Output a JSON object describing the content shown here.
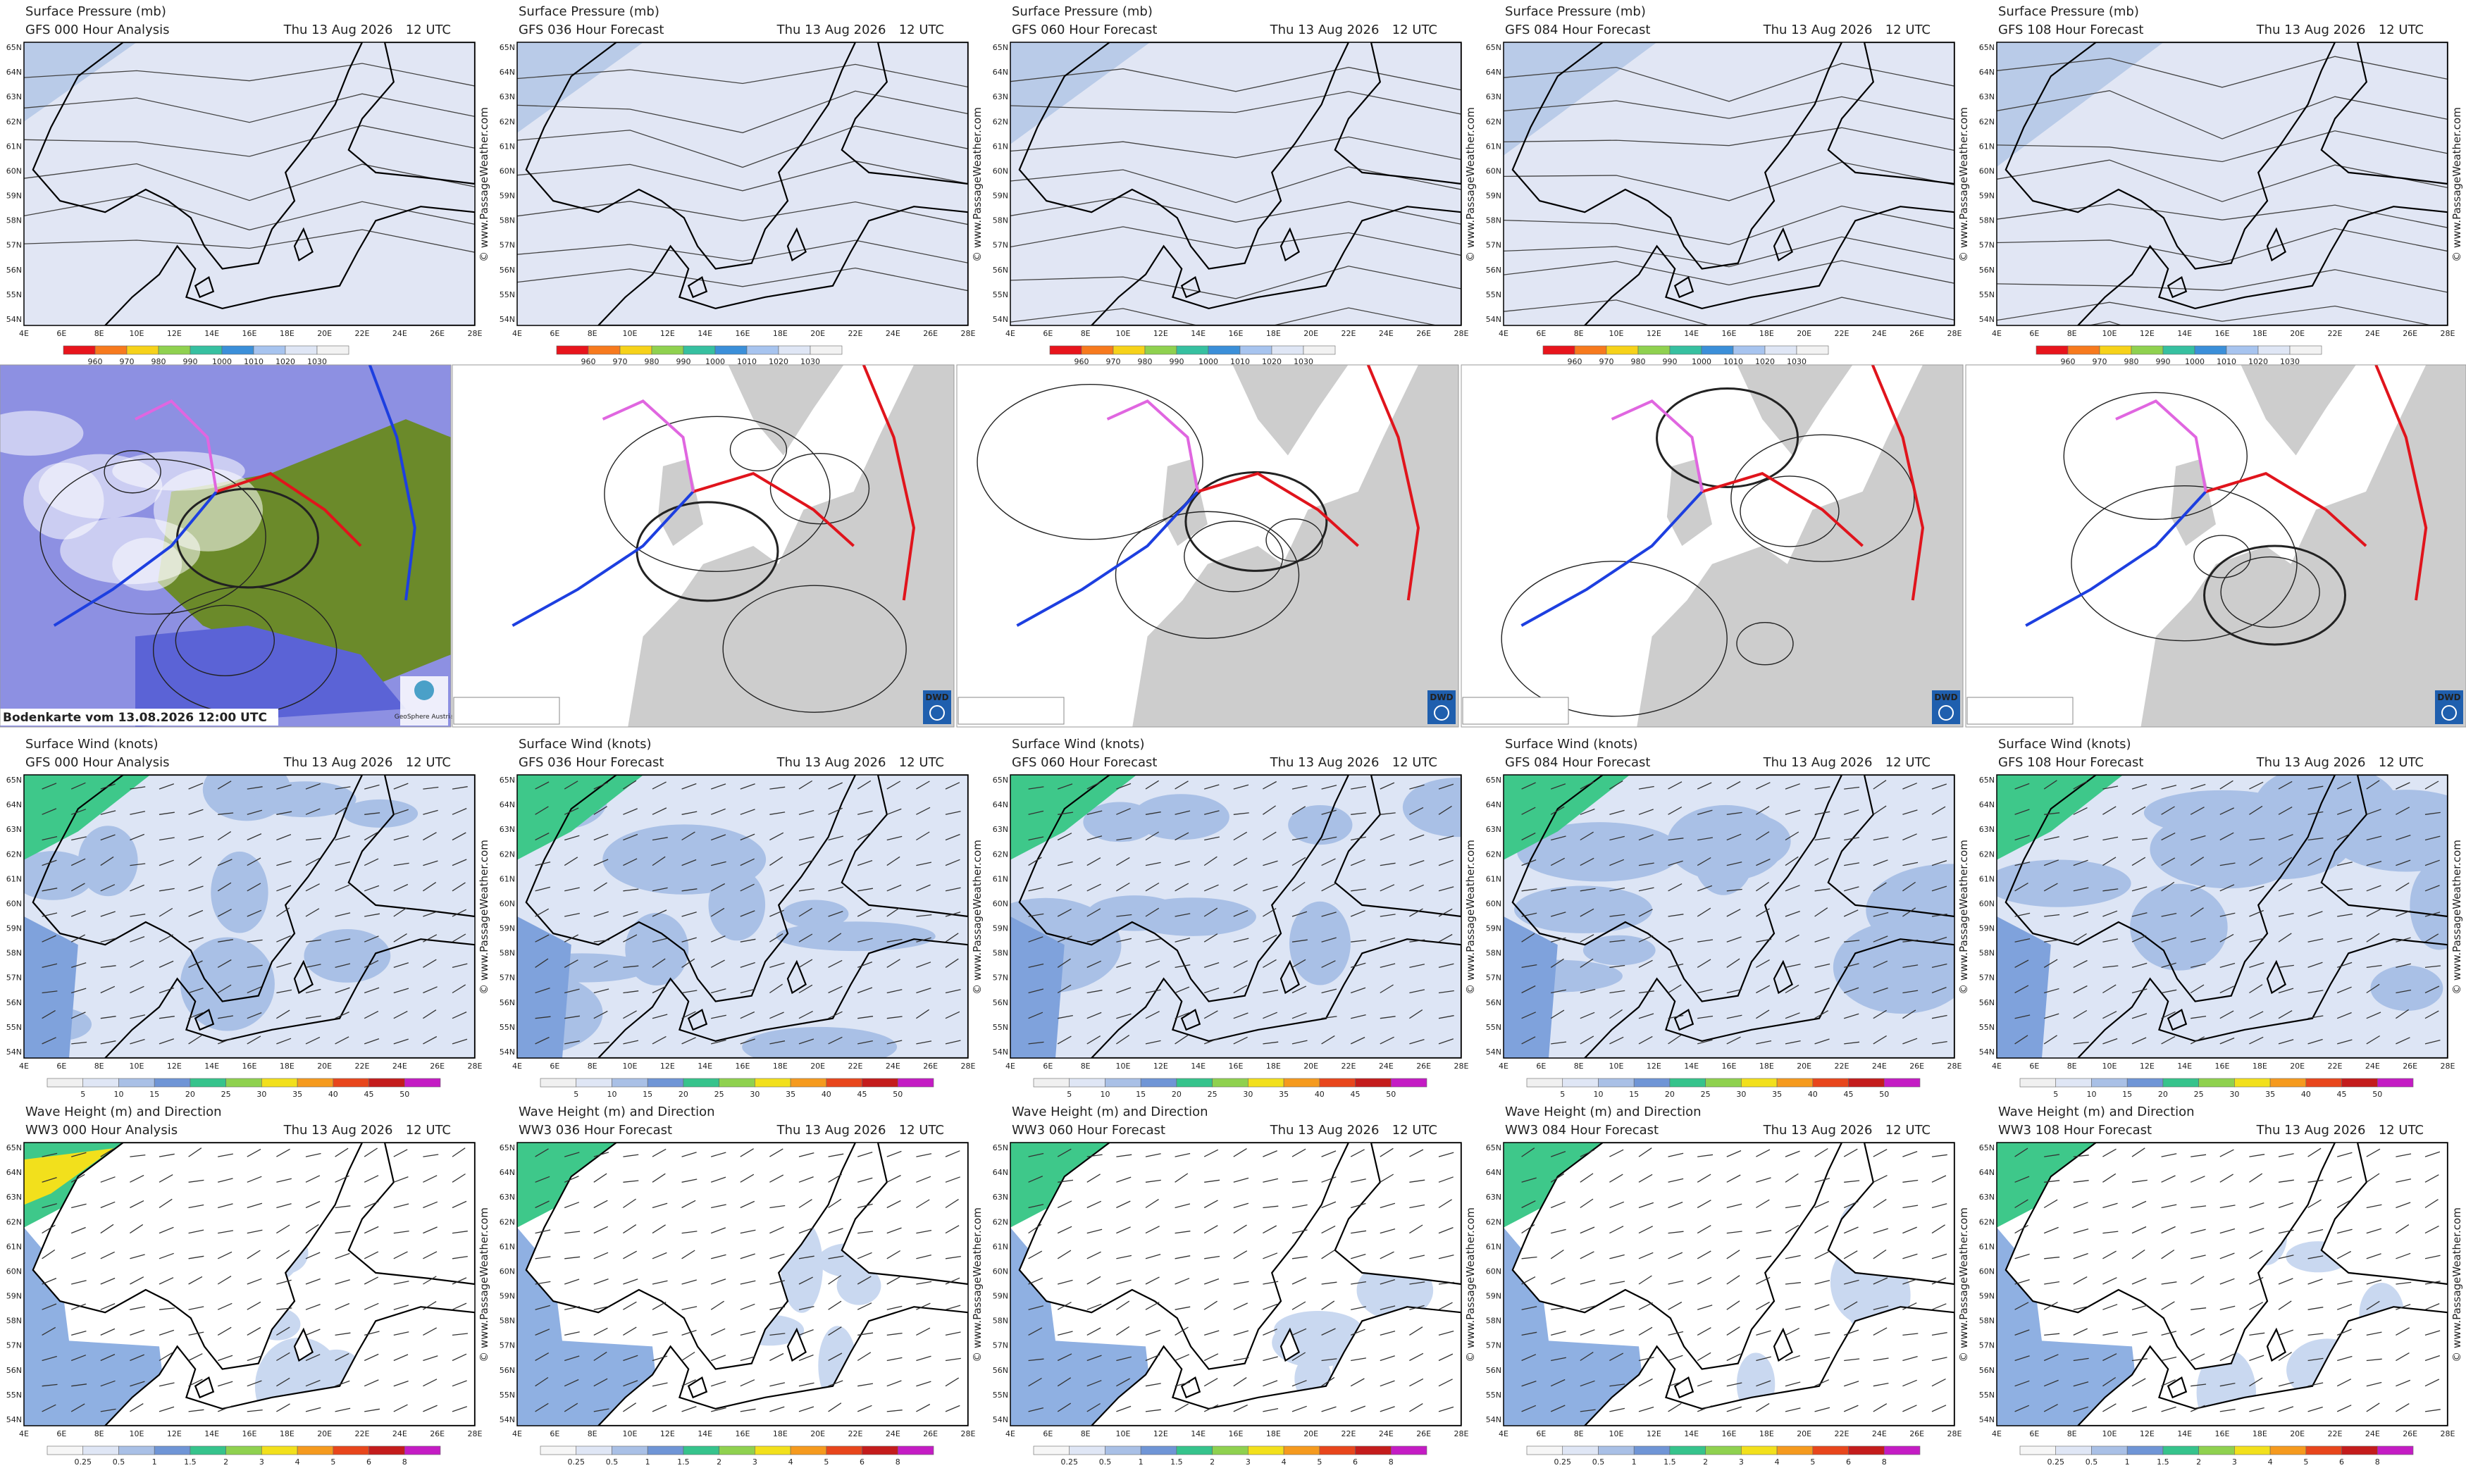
{
  "date": "Thu 13 Aug 2026",
  "time": "12 UTC",
  "watermark": "© www.PassageWeather.com",
  "lat_labels": [
    "65N",
    "64N",
    "63N",
    "62N",
    "61N",
    "60N",
    "59N",
    "58N",
    "57N",
    "56N",
    "55N",
    "54N"
  ],
  "lon_labels": [
    "4E",
    "6E",
    "8E",
    "10E",
    "12E",
    "14E",
    "16E",
    "18E",
    "20E",
    "22E",
    "24E",
    "26E",
    "28E"
  ],
  "pressure_row": {
    "title": "Surface Pressure (mb)",
    "panels": [
      "GFS 000 Hour Analysis",
      "GFS 036 Hour Forecast",
      "GFS 060 Hour Forecast",
      "GFS 084 Hour Forecast",
      "GFS 108 Hour Forecast"
    ],
    "colorbar": {
      "labels": [
        "960",
        "970",
        "980",
        "990",
        "1000",
        "1010",
        "1020",
        "1030"
      ],
      "colors": [
        "#e8141c",
        "#f77a1e",
        "#f6d21a",
        "#8fd14f",
        "#36c0a0",
        "#3b8fd9",
        "#a7c4ef",
        "#dfe6f5",
        "#f2f2f2"
      ]
    }
  },
  "analysis_row": {
    "caption": "Bodenkarte vom 13.08.2026 12:00 UTC",
    "geosphere": "GeoSphere Austria",
    "dwd_logo": "DWD"
  },
  "wind_row": {
    "title": "Surface Wind (knots)",
    "panels": [
      "GFS 000 Hour Analysis",
      "GFS 036 Hour Forecast",
      "GFS 060 Hour Forecast",
      "GFS 084 Hour Forecast",
      "GFS 108 Hour Forecast"
    ],
    "colorbar": {
      "labels": [
        "5",
        "10",
        "15",
        "20",
        "25",
        "30",
        "35",
        "40",
        "45",
        "50"
      ],
      "colors": [
        "#f0f0f0",
        "#dfe6f5",
        "#a9c0e6",
        "#6f95d6",
        "#36c38c",
        "#8fd14f",
        "#f2e01c",
        "#f59a1e",
        "#e8461c",
        "#c41c1c",
        "#c41cc4"
      ]
    }
  },
  "wave_row": {
    "title": "Wave Height (m) and Direction",
    "panels": [
      "WW3 000 Hour Analysis",
      "WW3 036 Hour Forecast",
      "WW3 060 Hour Forecast",
      "WW3 084 Hour Forecast",
      "WW3 108 Hour Forecast"
    ],
    "colorbar": {
      "labels": [
        "0.25",
        "0.5",
        "1",
        "1.5",
        "2",
        "3",
        "4",
        "5",
        "6",
        "8"
      ],
      "colors": [
        "#f6f6f6",
        "#dfe6f5",
        "#a9c0e6",
        "#6f95d6",
        "#36c38c",
        "#8fd14f",
        "#f2e01c",
        "#f59a1e",
        "#e8461c",
        "#c41c1c",
        "#c41cc4"
      ]
    }
  }
}
